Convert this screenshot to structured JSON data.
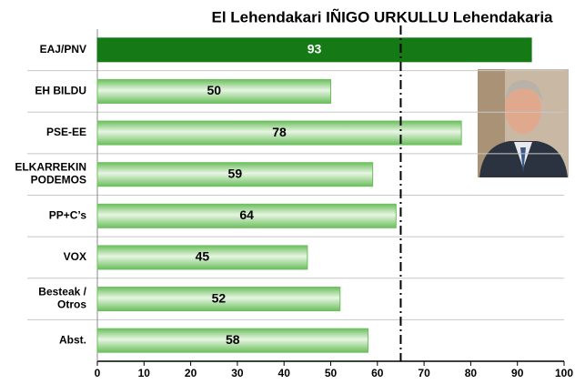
{
  "chart_data": {
    "type": "barh",
    "title": "El Lehendakari IÑIGO URKULLU Lehendakaria",
    "categories": [
      "EAJ/PNV",
      "EH BILDU",
      "PSE-EE",
      "ELKARREKIN\nPODEMOS",
      "PP+C’s",
      "VOX",
      "Besteak /\nOtros",
      "Abst."
    ],
    "values": [
      93,
      50,
      78,
      59,
      64,
      45,
      52,
      58
    ],
    "colors": [
      "#157a15",
      "#6cbf5e",
      "#6cbf5e",
      "#6cbf5e",
      "#6cbf5e",
      "#6cbf5e",
      "#6cbf5e",
      "#6cbf5e"
    ],
    "label_colors": [
      "#ffffff",
      "#000000",
      "#000000",
      "#000000",
      "#000000",
      "#000000",
      "#000000",
      "#000000"
    ],
    "xlim": [
      0,
      100
    ],
    "xticks": [
      0,
      10,
      20,
      30,
      40,
      50,
      60,
      70,
      80,
      90,
      100
    ],
    "reference_line": 65
  }
}
